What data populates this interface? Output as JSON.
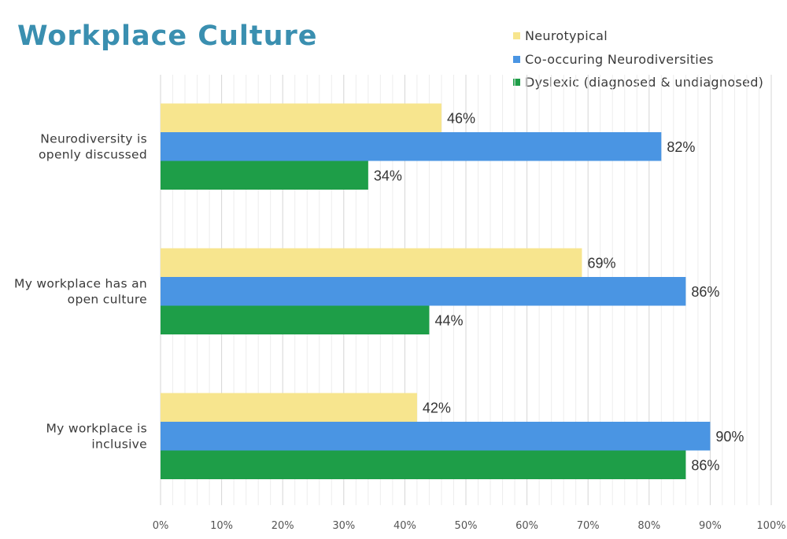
{
  "chart_data": {
    "type": "bar",
    "orientation": "horizontal",
    "title": "Workplace Culture",
    "categories": [
      [
        "Neurodiversity is",
        "openly discussed"
      ],
      [
        "My workplace has an",
        "open culture"
      ],
      [
        "My workplace is",
        "inclusive"
      ]
    ],
    "series": [
      {
        "name": "Neurotypical",
        "color": "#f7e58e",
        "values": [
          46,
          69,
          42
        ]
      },
      {
        "name": "Co-occuring Neurodiversities",
        "color": "#4a95e3",
        "values": [
          82,
          86,
          90
        ]
      },
      {
        "name": "Dyslexic (diagnosed & undiagnosed)",
        "color": "#1e9e48",
        "values": [
          34,
          44,
          86
        ]
      }
    ],
    "value_suffix": "%",
    "xlim": [
      0,
      100
    ],
    "x_ticks": [
      "0%",
      "10%",
      "20%",
      "30%",
      "40%",
      "50%",
      "60%",
      "70%",
      "80%",
      "90%",
      "100%"
    ],
    "grid": "vertical",
    "legend_position": "top-right"
  }
}
